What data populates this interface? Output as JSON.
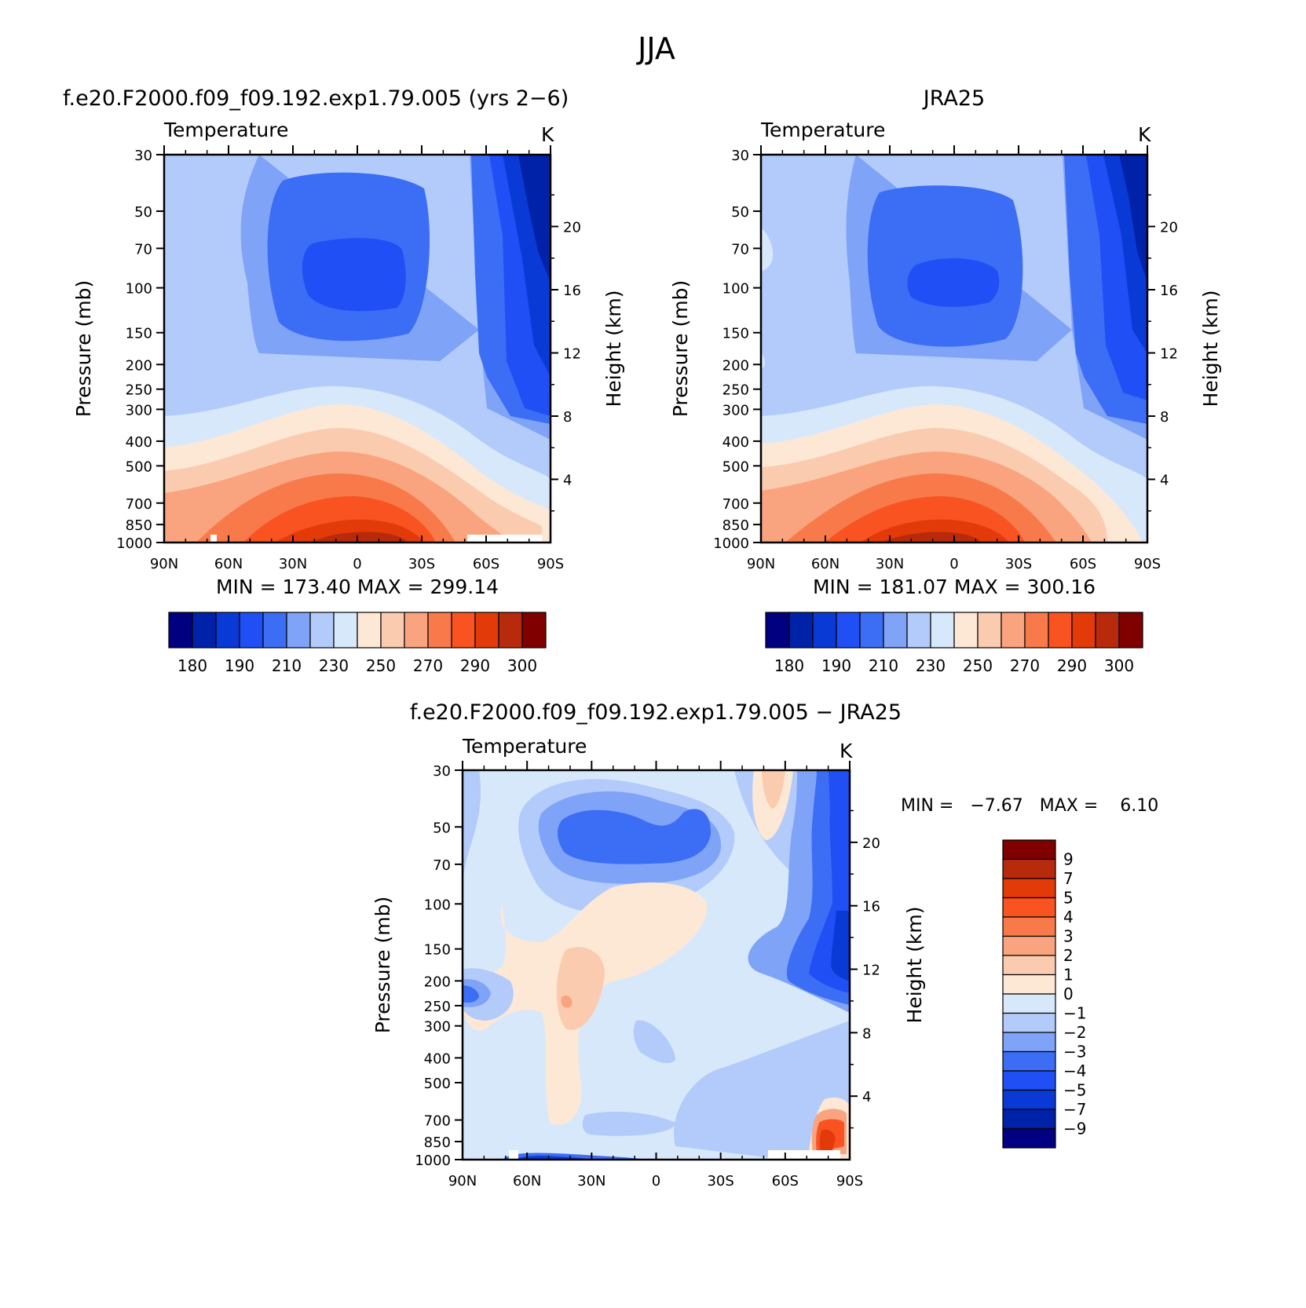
{
  "figure": {
    "title": "JJA"
  },
  "panels": [
    {
      "id": "model",
      "title": "f.e20.F2000.f09_f09.192.exp1.79.005 (yrs 2−6)",
      "field_label": "Temperature",
      "units": "K",
      "ylabel_left": "Pressure (mb)",
      "ylabel_right": "Height (km)",
      "stats": "MIN = 173.40   MAX = 299.14"
    },
    {
      "id": "obs",
      "title": "JRA25",
      "field_label": "Temperature",
      "units": "K",
      "ylabel_left": "Pressure (mb)",
      "ylabel_right": "Height (km)",
      "stats": "MIN = 181.07   MAX = 300.16"
    },
    {
      "id": "diff",
      "title": "f.e20.F2000.f09_f09.192.exp1.79.005 − JRA25",
      "field_label": "Temperature",
      "units": "K",
      "ylabel_left": "Pressure (mb)",
      "ylabel_right": "Height (km)",
      "stats": "MIN =   −7.67   MAX =    6.10"
    }
  ],
  "axes": {
    "x_ticks": [
      "90N",
      "60N",
      "30N",
      "0",
      "30S",
      "60S",
      "90S"
    ],
    "y_ticks_pressure": [
      "30",
      "50",
      "70",
      "100",
      "150",
      "200",
      "250",
      "300",
      "400",
      "500",
      "700",
      "850",
      "1000"
    ],
    "y_ticks_height": [
      "20",
      "16",
      "12",
      "8",
      "4"
    ]
  },
  "colorbars": {
    "abs_labels": [
      "180",
      "190",
      "210",
      "230",
      "250",
      "270",
      "290",
      "300"
    ],
    "abs_colors": [
      "#000080",
      "#0022a8",
      "#0a3ad6",
      "#1f4ff5",
      "#3c6df5",
      "#7fa3f7",
      "#b3cbfa",
      "#d8e8fb",
      "#fde8d6",
      "#fbcbb0",
      "#f9a47e",
      "#f87a4a",
      "#f85320",
      "#e33a0a",
      "#b82a0c",
      "#800000"
    ],
    "diff_labels": [
      "9",
      "7",
      "5",
      "4",
      "3",
      "2",
      "1",
      "0",
      "−1",
      "−2",
      "−3",
      "−4",
      "−5",
      "−7",
      "−9"
    ],
    "diff_colors": [
      "#800000",
      "#b82a0c",
      "#e33a0a",
      "#f85320",
      "#f87a4a",
      "#f9a47e",
      "#fbcbb0",
      "#fde8d6",
      "#d8e8fb",
      "#b3cbfa",
      "#7fa3f7",
      "#3c6df5",
      "#1f4ff5",
      "#0a3ad6",
      "#0022a8",
      "#000080"
    ]
  },
  "chart_data": [
    {
      "type": "heatmap",
      "title": "f.e20.F2000.f09_f09.192.exp1.79.005 (yrs 2−6)",
      "variable": "Temperature",
      "units": "K",
      "xlabel": "",
      "ylabel": "Pressure (mb)",
      "y2label": "Height (km)",
      "x_range": [
        "90N",
        "90S"
      ],
      "y_range_mb": [
        30,
        1000
      ],
      "y_scale": "log",
      "min": 173.4,
      "max": 299.14,
      "levels": [
        180,
        185,
        190,
        200,
        210,
        220,
        230,
        240,
        250,
        260,
        270,
        280,
        290,
        295,
        300
      ]
    },
    {
      "type": "heatmap",
      "title": "JRA25",
      "variable": "Temperature",
      "units": "K",
      "xlabel": "",
      "ylabel": "Pressure (mb)",
      "y2label": "Height (km)",
      "x_range": [
        "90N",
        "90S"
      ],
      "y_range_mb": [
        30,
        1000
      ],
      "y_scale": "log",
      "min": 181.07,
      "max": 300.16,
      "levels": [
        180,
        185,
        190,
        200,
        210,
        220,
        230,
        240,
        250,
        260,
        270,
        280,
        290,
        295,
        300
      ]
    },
    {
      "type": "heatmap",
      "title": "f.e20.F2000.f09_f09.192.exp1.79.005 − JRA25",
      "variable": "Temperature",
      "units": "K",
      "xlabel": "",
      "ylabel": "Pressure (mb)",
      "y2label": "Height (km)",
      "x_range": [
        "90N",
        "90S"
      ],
      "y_range_mb": [
        30,
        1000
      ],
      "y_scale": "log",
      "min": -7.67,
      "max": 6.1,
      "levels": [
        -9,
        -7,
        -5,
        -4,
        -3,
        -2,
        -1,
        0,
        1,
        2,
        3,
        4,
        5,
        7,
        9
      ]
    }
  ]
}
